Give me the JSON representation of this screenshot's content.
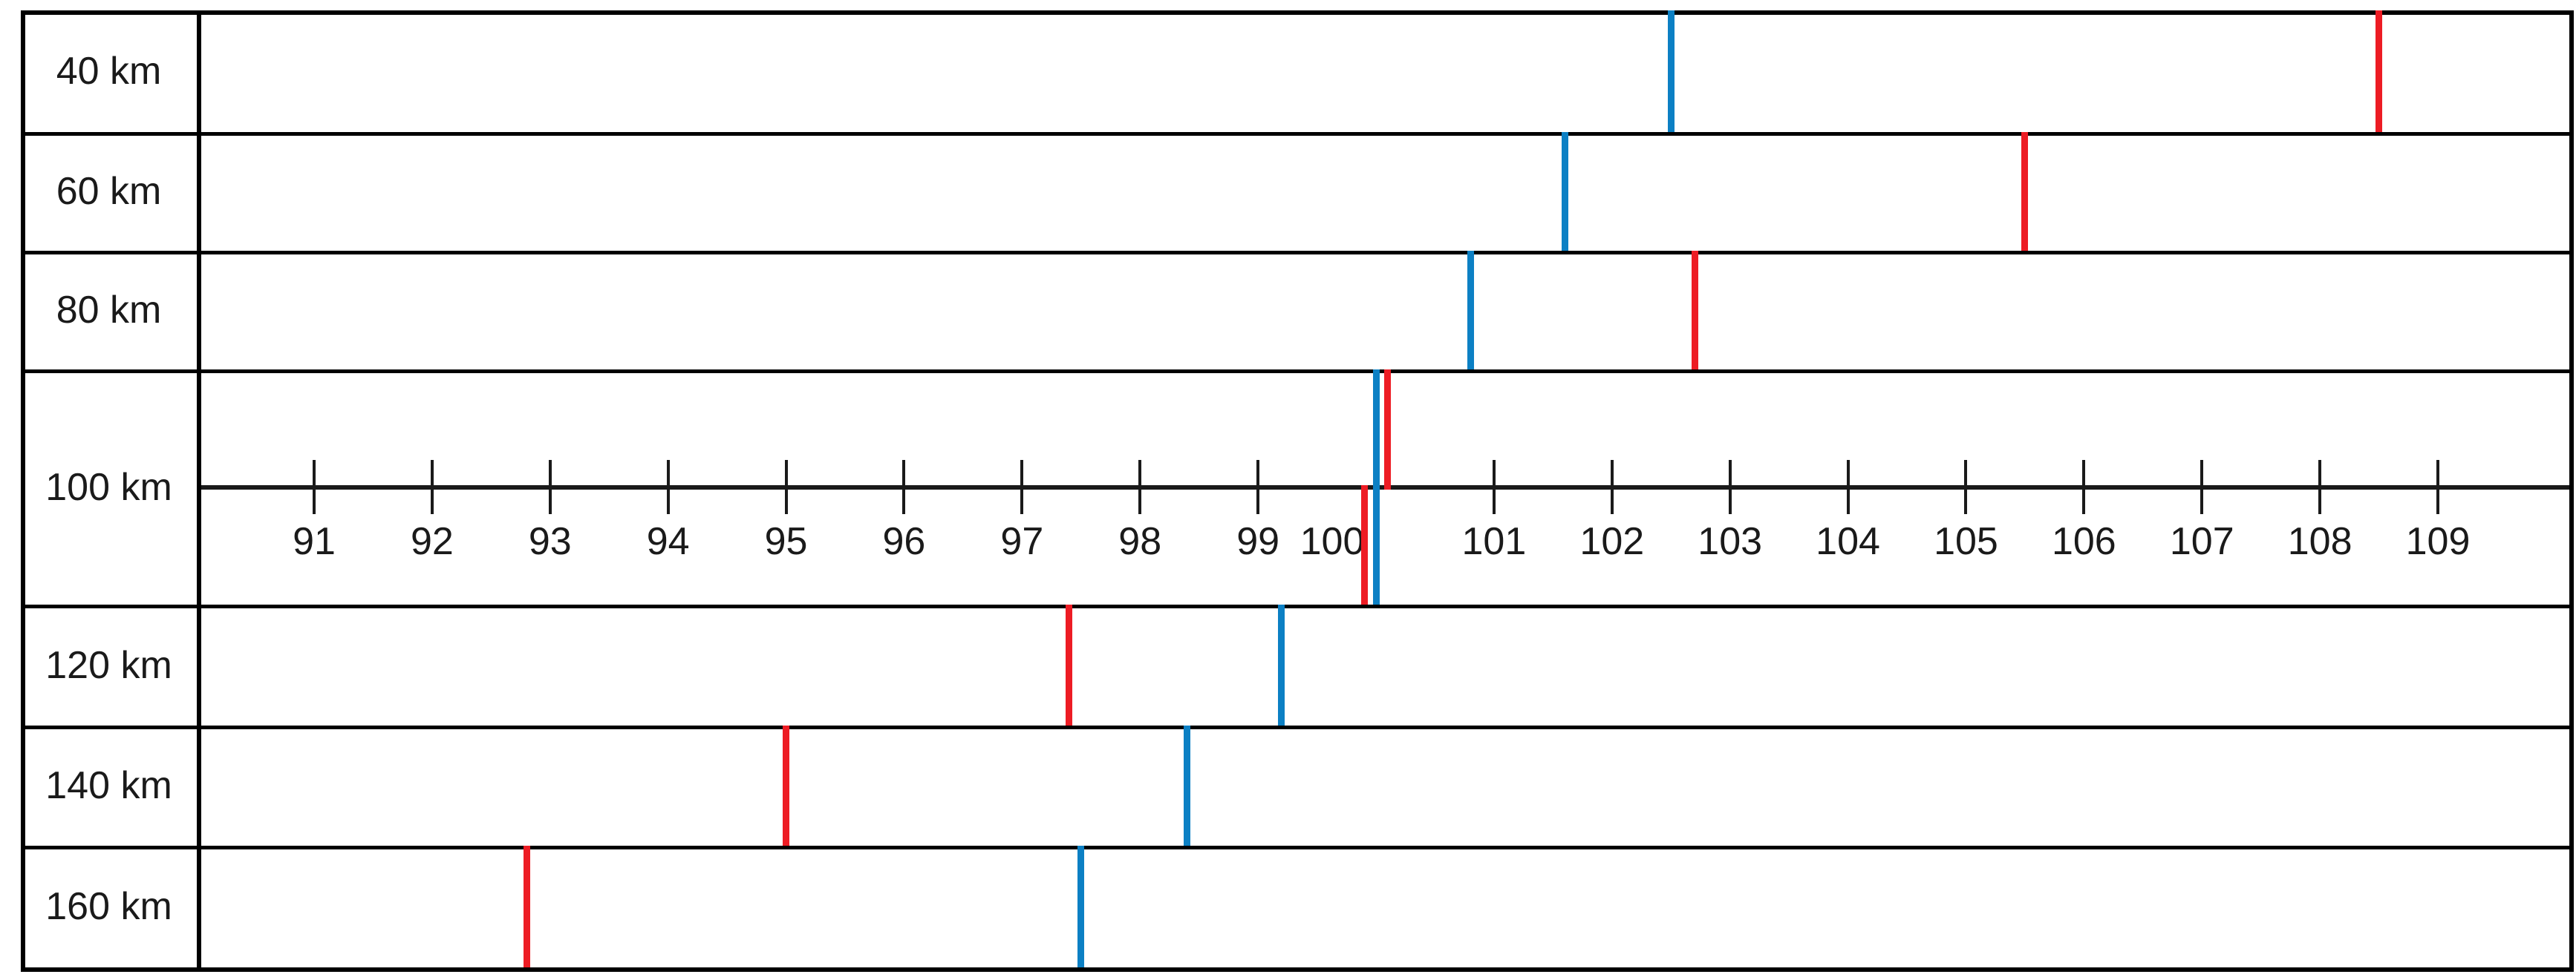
{
  "chart_data": {
    "type": "scatter",
    "title": "",
    "subtitle": "",
    "layout": "horizontal number-line chart: one row per altitude, each row holds a blue and a red vertical marker on a shared horizontal value scale; the scale axis is drawn through the middle of the 100 km row",
    "categories": [
      "40 km",
      "60 km",
      "80 km",
      "100 km",
      "120 km",
      "140 km",
      "160 km"
    ],
    "series": [
      {
        "name": "blue-marker",
        "color": "#0c80c4",
        "values": [
          102.5,
          101.6,
          100.8,
          100.0,
          99.2,
          98.4,
          97.5
        ]
      },
      {
        "name": "red-marker",
        "color": "#ed1c24",
        "values": [
          108.5,
          105.5,
          102.7,
          null,
          97.4,
          95.0,
          92.8
        ]
      }
    ],
    "red_marker_100km_row": {
      "above_axis": 100.1,
      "below_axis": 99.9
    },
    "blue_marker_100km_row": {
      "full_height": 100.0
    },
    "axis": {
      "min": 91,
      "max": 109,
      "tick_step": 1,
      "tick_labels": [
        "91",
        "92",
        "93",
        "94",
        "95",
        "96",
        "97",
        "98",
        "99",
        "100",
        "101",
        "102",
        "103",
        "104",
        "105",
        "106",
        "107",
        "108",
        "109"
      ],
      "shifted_label": "100",
      "grid": false,
      "legend": "none"
    },
    "xlim": [
      89.5,
      110.2
    ],
    "line_color": "#000000"
  }
}
